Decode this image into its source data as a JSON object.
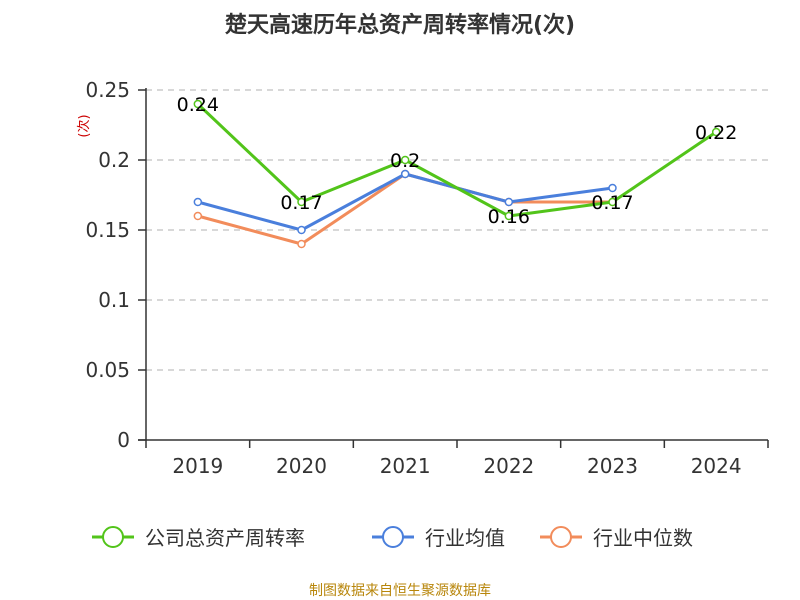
{
  "chart_data": {
    "type": "line",
    "title": "楚天高速历年总资产周转率情况(次)",
    "ylabel": "(次)",
    "xlabel": "",
    "categories": [
      "2019",
      "2020",
      "2021",
      "2022",
      "2023",
      "2024"
    ],
    "ylim": [
      0,
      0.25
    ],
    "yticks": [
      0,
      0.05,
      0.1,
      0.15,
      0.2,
      0.25
    ],
    "ytick_labels": [
      "0",
      "0.05",
      "0.1",
      "0.15",
      "0.2",
      "0.25"
    ],
    "grid": true,
    "legend_position": "bottom",
    "series": [
      {
        "name": "公司总资产周转率",
        "color": "#52c41a",
        "values": [
          0.24,
          0.17,
          0.2,
          0.16,
          0.17,
          0.22
        ],
        "data_labels": [
          "0.24",
          "0.17",
          "0.2",
          "0.16",
          "0.17",
          "0.22"
        ]
      },
      {
        "name": "行业均值",
        "color": "#4a7fdc",
        "values": [
          0.17,
          0.15,
          0.19,
          0.17,
          0.18,
          null
        ]
      },
      {
        "name": "行业中位数",
        "color": "#f28c5b",
        "values": [
          0.16,
          0.14,
          0.19,
          0.17,
          0.17,
          null
        ]
      }
    ]
  },
  "source_text": "制图数据来自恒生聚源数据库"
}
